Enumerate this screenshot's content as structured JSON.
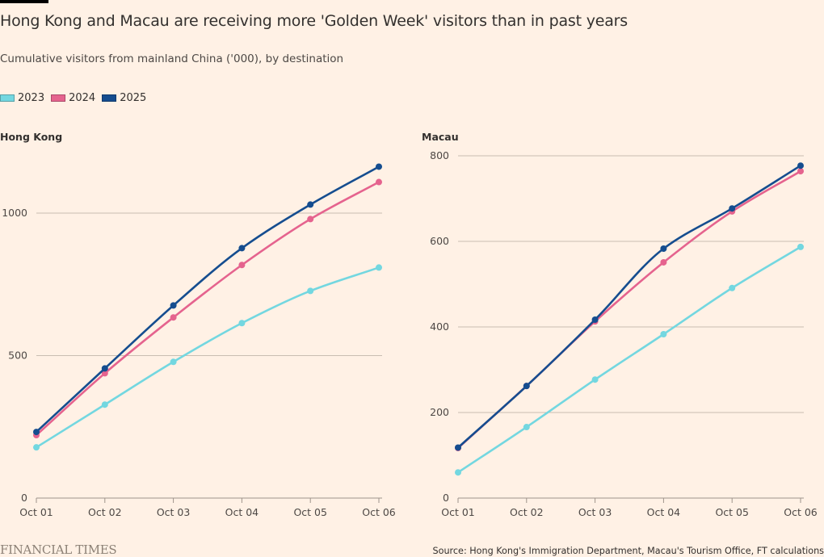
{
  "header": {
    "title": "Hong Kong and Macau are receiving more 'Golden Week' visitors than in past years",
    "subtitle": "Cumulative visitors from mainland China ('000), by destination"
  },
  "legend": [
    {
      "label": "2023",
      "color": "#73d7e0"
    },
    {
      "label": "2024",
      "color": "#e5638e"
    },
    {
      "label": "2025",
      "color": "#154d8f"
    }
  ],
  "footer": {
    "logo": "FINANCIAL TIMES",
    "source": "Source: Hong Kong's Immigration Department, Macau's Tourism Office, FT calculations"
  },
  "chart_data": [
    {
      "type": "line",
      "title": "Hong Kong",
      "xlabel": "",
      "ylabel": "",
      "categories": [
        "Oct 01",
        "Oct 02",
        "Oct 03",
        "Oct 04",
        "Oct 05",
        "Oct 06"
      ],
      "ylim": [
        0,
        1200
      ],
      "yticks": [
        0,
        500,
        1000
      ],
      "grid": true,
      "legend": "top-left",
      "series": [
        {
          "name": "2023",
          "color": "#73d7e0",
          "values": [
            178,
            328,
            478,
            614,
            727,
            809
          ]
        },
        {
          "name": "2024",
          "color": "#e5638e",
          "values": [
            221,
            438,
            634,
            818,
            979,
            1109
          ]
        },
        {
          "name": "2025",
          "color": "#154d8f",
          "values": [
            232,
            455,
            676,
            877,
            1030,
            1163
          ]
        }
      ]
    },
    {
      "type": "line",
      "title": "Macau",
      "xlabel": "",
      "ylabel": "",
      "categories": [
        "Oct 01",
        "Oct 02",
        "Oct 03",
        "Oct 04",
        "Oct 05",
        "Oct 06"
      ],
      "ylim": [
        0,
        800
      ],
      "yticks": [
        0,
        200,
        400,
        600,
        800
      ],
      "grid": true,
      "legend": "top-left",
      "series": [
        {
          "name": "2023",
          "color": "#73d7e0",
          "values": [
            60,
            166,
            277,
            383,
            491,
            587
          ]
        },
        {
          "name": "2024",
          "color": "#e5638e",
          "values": [
            117,
            262,
            413,
            551,
            670,
            764
          ]
        },
        {
          "name": "2025",
          "color": "#154d8f",
          "values": [
            118,
            262,
            417,
            583,
            677,
            777
          ]
        }
      ]
    }
  ]
}
